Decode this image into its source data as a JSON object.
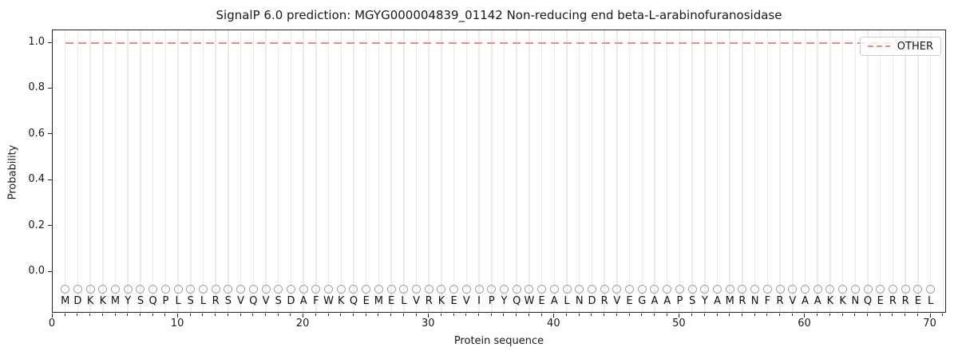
{
  "chart_data": {
    "type": "line",
    "title": "SignalP 6.0 prediction: MGYG000004839_01142 Non-reducing end beta-L-arabinofuranosidase",
    "xlabel": "Protein sequence",
    "ylabel": "Probability",
    "xlim": [
      0,
      71.3
    ],
    "ylim": [
      -0.181,
      1.056
    ],
    "x_ticks": [
      0,
      10,
      20,
      30,
      40,
      50,
      60,
      70
    ],
    "y_ticks": [
      0.0,
      0.2,
      0.4,
      0.6,
      0.8,
      1.0
    ],
    "y_tick_labels": [
      "0.0",
      "0.2",
      "0.4",
      "0.6",
      "0.8",
      "1.0"
    ],
    "grid": "vertical gridline at every residue position, no horizontal gridlines",
    "legend": {
      "position": "upper right",
      "entries": [
        {
          "label": "OTHER",
          "color": "#ea8a8c",
          "linestyle": "dashed"
        }
      ]
    },
    "series": [
      {
        "name": "OTHER",
        "linestyle": "dashed",
        "color": "#ea8a8c",
        "x_start": 1,
        "x_end": 70,
        "constant_value": 1.0,
        "note": "OTHER probability is constant 1.0 across all 70 residues"
      }
    ],
    "sequence": "MDKKMYSQPLSLRSVQVSDAFWKQEMELVRKEVIPYQWEALNDRVEGAAPSYAMRNFRVAAKKNQERREL",
    "sequence_length": 70,
    "sequence_markers": {
      "symbol": "circle-outline",
      "y_value": -0.075,
      "color": "#a3a3a3"
    },
    "sequence_letters_y": -0.128
  },
  "colors": {
    "other_line": "#ea8a8c",
    "gridline": "#ececec",
    "marker_edge": "#a3a3a3",
    "text": "#1a1a1a",
    "spine": "#262626",
    "legend_border": "#cccccc",
    "background": "#ffffff"
  }
}
